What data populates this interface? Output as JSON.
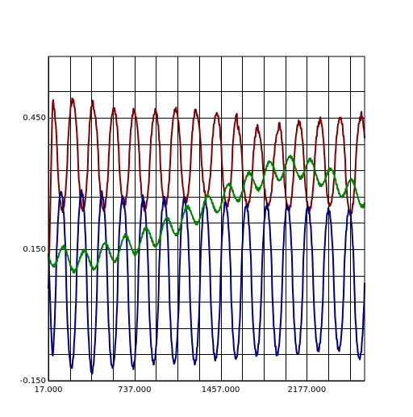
{
  "chart_data": {
    "type": "line",
    "title": "",
    "xlabel": "",
    "ylabel": "",
    "xlim": [
      17,
      2660
    ],
    "ylim": [
      -0.15,
      0.59
    ],
    "grid": true,
    "legend": "none",
    "x_tick_labels": [
      {
        "value": 17,
        "label": "17.000"
      },
      {
        "value": 737,
        "label": "737.000"
      },
      {
        "value": 1457,
        "label": "1457.000"
      },
      {
        "value": 2177,
        "label": "2177.000"
      }
    ],
    "y_tick_labels": [
      {
        "value": -0.15,
        "label": "-0.150"
      },
      {
        "value": 0.15,
        "label": "0.150"
      },
      {
        "value": 0.45,
        "label": "0.450"
      }
    ],
    "x_grid_values": [
      17,
      197,
      377,
      557,
      737,
      917,
      1097,
      1277,
      1457,
      1637,
      1817,
      1997,
      2177,
      2357,
      2537
    ],
    "y_grid_values": [
      -0.15,
      -0.09,
      -0.03,
      0.03,
      0.09,
      0.15,
      0.21,
      0.27,
      0.33,
      0.39,
      0.45,
      0.51
    ],
    "series": [
      {
        "color": "#800000",
        "period": 172,
        "phase_x": 220,
        "peak": 0.49,
        "trough": 0.24,
        "start_x": 17,
        "start_y": 0.06,
        "noise": 0.006,
        "peak_values": [
          0.49,
          0.49,
          0.47,
          0.47,
          0.46,
          0.47,
          0.47,
          0.46,
          0.46,
          0.43,
          0.42,
          0.44,
          0.44,
          0.45,
          0.45,
          0.46
        ],
        "trough_values": [
          0.24,
          0.24,
          0.24,
          0.25,
          0.24,
          0.25,
          0.26,
          0.27,
          0.25,
          0.25,
          0.25,
          0.24,
          0.24,
          0.25,
          0.23,
          0.24
        ]
      },
      {
        "color": "#000080",
        "period": 172,
        "phase_x": 295,
        "peak": 0.28,
        "trough": -0.12,
        "start_x": 17,
        "start_y": 0.14,
        "noise": 0.006,
        "peak_values": [
          0.28,
          0.28,
          0.27,
          0.27,
          0.26,
          0.27,
          0.26,
          0.26,
          0.25,
          0.25,
          0.25,
          0.25,
          0.24,
          0.24,
          0.24,
          0.24
        ],
        "trough_values": [
          -0.12,
          -0.13,
          -0.12,
          -0.12,
          -0.11,
          -0.11,
          -0.11,
          -0.1,
          -0.1,
          -0.09,
          -0.09,
          -0.09,
          -0.08,
          -0.08,
          -0.1,
          -0.1
        ]
      },
      {
        "color": "#008000",
        "period": 172,
        "x": [
          17,
          150,
          300,
          500,
          700,
          900,
          1100,
          1300,
          1500,
          1700,
          1900,
          2100,
          2300,
          2500,
          2660
        ],
        "y": [
          0.14,
          0.13,
          0.12,
          0.14,
          0.16,
          0.18,
          0.21,
          0.24,
          0.27,
          0.3,
          0.33,
          0.34,
          0.32,
          0.29,
          0.27
        ],
        "ripple": 0.025,
        "noise": 0.004
      }
    ]
  }
}
